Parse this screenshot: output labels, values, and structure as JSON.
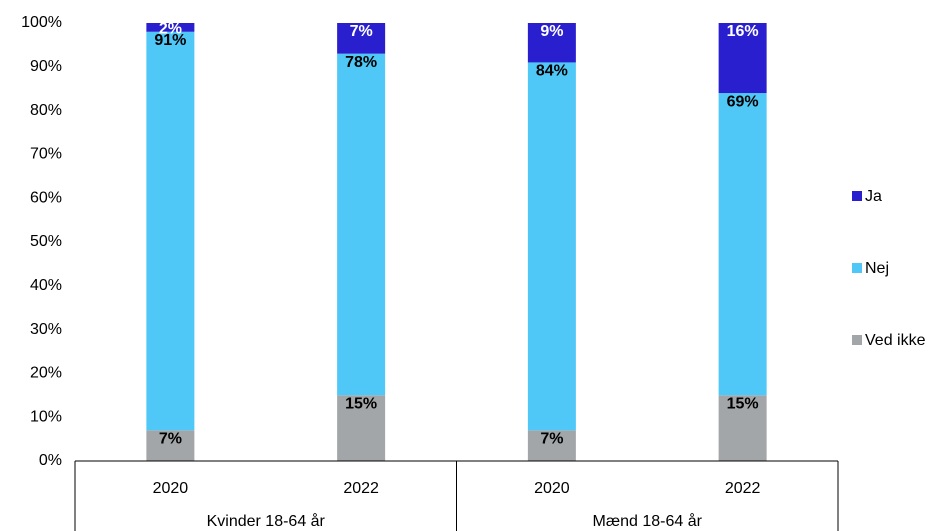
{
  "chart_data": {
    "type": "stacked_bar",
    "categories": [
      "2020",
      "2022",
      "2020",
      "2022"
    ],
    "groups": [
      "Kvinder 18-64 år",
      "Mænd 18-64 år"
    ],
    "series": [
      {
        "name": "Ved ikke",
        "color": "#a3a6a8",
        "label_color": "#000000",
        "values": [
          7,
          15,
          7,
          15
        ],
        "value_labels": [
          "7%",
          "15%",
          "7%",
          "15%"
        ]
      },
      {
        "name": "Nej",
        "color": "#4fc8f8",
        "label_color": "#000000",
        "values": [
          91,
          78,
          84,
          69
        ],
        "value_labels": [
          "91%",
          "78%",
          "84%",
          "69%"
        ]
      },
      {
        "name": "Ja",
        "color": "#2a1fce",
        "label_color": "#ffffff",
        "values": [
          2,
          7,
          9,
          16
        ],
        "value_labels": [
          "2%",
          "7%",
          "9%",
          "16%"
        ]
      }
    ],
    "ylim": [
      0,
      100
    ],
    "yticks": [
      {
        "value": 0,
        "label": "0%"
      },
      {
        "value": 10,
        "label": "10%"
      },
      {
        "value": 20,
        "label": "20%"
      },
      {
        "value": 30,
        "label": "30%"
      },
      {
        "value": 40,
        "label": "40%"
      },
      {
        "value": 50,
        "label": "50%"
      },
      {
        "value": 60,
        "label": "60%"
      },
      {
        "value": 70,
        "label": "70%"
      },
      {
        "value": 80,
        "label": "80%"
      },
      {
        "value": 90,
        "label": "90%"
      },
      {
        "value": 100,
        "label": "100%"
      }
    ],
    "grid": false,
    "legend": "right"
  }
}
